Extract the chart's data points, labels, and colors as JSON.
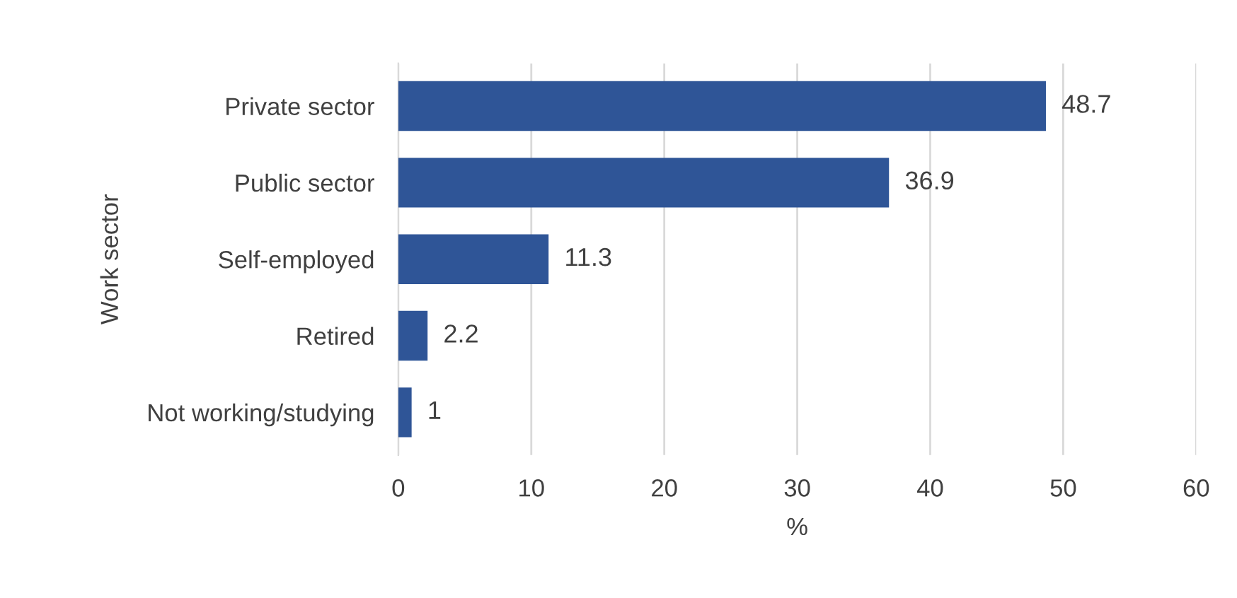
{
  "chart_data": {
    "type": "bar",
    "orientation": "horizontal",
    "categories": [
      "Private sector",
      "Public sector",
      "Self-employed",
      "Retired",
      "Not working/studying"
    ],
    "values": [
      48.7,
      36.9,
      11.3,
      2.2,
      1
    ],
    "color": "#2f5597",
    "xlim": [
      0,
      60
    ],
    "xticks": [
      0,
      10,
      20,
      30,
      40,
      50,
      60
    ],
    "xlabel": "%",
    "ylabel": "Work sector",
    "grid": "x",
    "data_labels": true,
    "legend": false
  }
}
